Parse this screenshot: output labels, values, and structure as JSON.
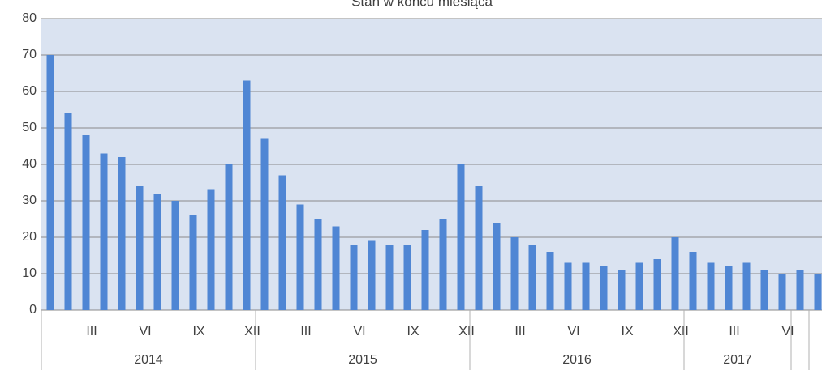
{
  "chart_data": {
    "type": "bar",
    "title": "Stan w końcu miesiąca",
    "categories": [
      null,
      null,
      "III",
      null,
      null,
      "VI",
      null,
      null,
      "IX",
      null,
      null,
      "XII",
      null,
      null,
      "III",
      null,
      null,
      "VI",
      null,
      null,
      "IX",
      null,
      null,
      "XII",
      null,
      null,
      "III",
      null,
      null,
      "VI",
      null,
      null,
      "IX",
      null,
      null,
      "XII",
      null,
      null,
      "III",
      null,
      null,
      "VI",
      null,
      null
    ],
    "groups": [
      {
        "label": "2014",
        "span": 12
      },
      {
        "label": "2015",
        "span": 12
      },
      {
        "label": "2016",
        "span": 12
      },
      {
        "label": "2017",
        "span": 6
      },
      {
        "label": null,
        "span": 1
      },
      {
        "label": null,
        "span": 1
      }
    ],
    "values": [
      70,
      54,
      48,
      43,
      42,
      34,
      32,
      30,
      26,
      33,
      40,
      63,
      47,
      37,
      29,
      25,
      23,
      18,
      19,
      18,
      18,
      22,
      25,
      40,
      34,
      24,
      20,
      18,
      16,
      13,
      13,
      12,
      11,
      13,
      14,
      20,
      16,
      13,
      12,
      13,
      11,
      10,
      11,
      10
    ],
    "color": "#4f86d4",
    "plot_background": "#dae3f1",
    "ylim": [
      0,
      80
    ],
    "yticks": [
      0,
      10,
      20,
      30,
      40,
      50,
      60,
      70,
      80
    ],
    "grid": true
  }
}
